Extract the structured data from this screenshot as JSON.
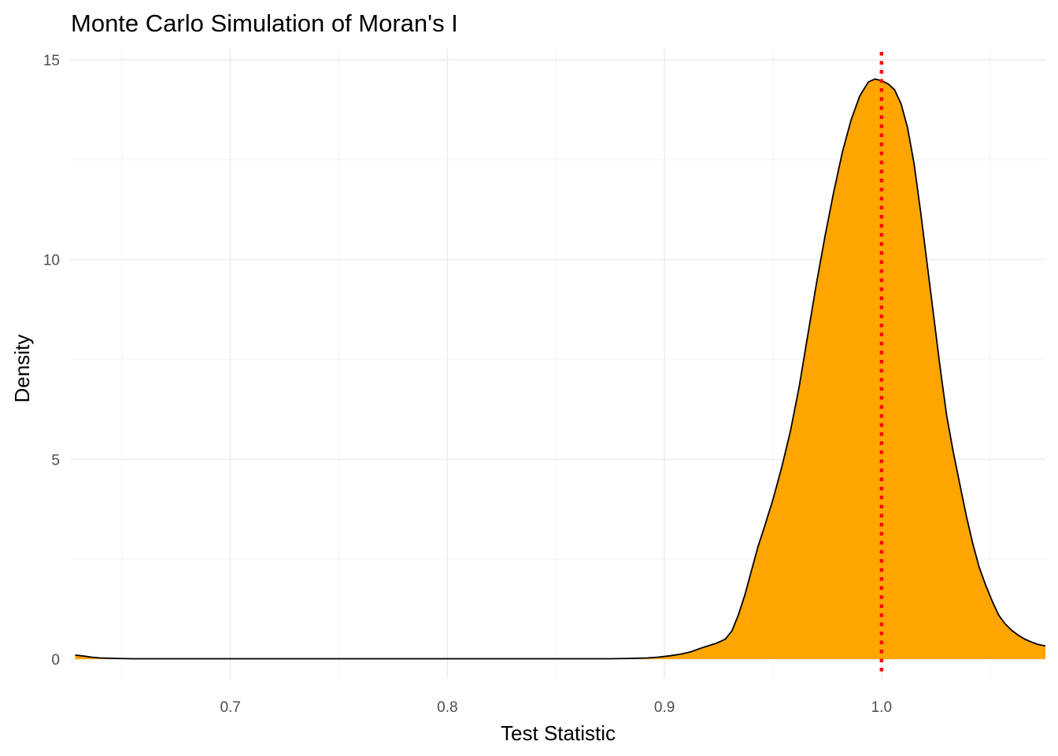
{
  "chart_data": {
    "type": "area",
    "title": "Monte Carlo Simulation of Moran's I",
    "xlabel": "Test Statistic",
    "ylabel": "Density",
    "xlim": [
      0.6265,
      1.0755
    ],
    "ylim": [
      0,
      15
    ],
    "x_ticks": [
      0.7,
      0.8,
      0.9,
      1.0
    ],
    "x_tick_labels": [
      "0.7",
      "0.8",
      "0.9",
      "1.0"
    ],
    "x_minor_ticks": [
      0.65,
      0.75,
      0.85,
      0.95,
      1.05
    ],
    "y_ticks": [
      0,
      5,
      10,
      15
    ],
    "y_tick_labels": [
      "0",
      "5",
      "10",
      "15"
    ],
    "y_minor_ticks": [
      2.5,
      7.5,
      12.5
    ],
    "grid": true,
    "legend": "none",
    "fill_color": "#FFA500",
    "line_color": "#000000",
    "reference_line": {
      "x": 1.0,
      "color": "#FF0000",
      "style": "dotted"
    },
    "series": [
      {
        "x": [
          0.6285,
          0.632,
          0.636,
          0.64,
          0.646,
          0.655,
          0.67,
          0.7,
          0.75,
          0.8,
          0.85,
          0.875,
          0.885,
          0.892,
          0.897,
          0.902,
          0.907,
          0.912,
          0.916,
          0.92,
          0.924,
          0.928,
          0.931,
          0.934,
          0.937,
          0.94,
          0.943,
          0.946,
          0.95,
          0.954,
          0.958,
          0.962,
          0.966,
          0.97,
          0.974,
          0.978,
          0.982,
          0.986,
          0.99,
          0.994,
          0.997,
          1.0,
          1.003,
          1.006,
          1.009,
          1.012,
          1.015,
          1.018,
          1.021,
          1.024,
          1.027,
          1.03,
          1.033,
          1.036,
          1.039,
          1.042,
          1.045,
          1.048,
          1.051,
          1.054,
          1.057,
          1.06,
          1.063,
          1.066,
          1.069,
          1.072,
          1.0755
        ],
        "y": [
          0.1,
          0.08,
          0.05,
          0.03,
          0.02,
          0.01,
          0.01,
          0.01,
          0.01,
          0.01,
          0.01,
          0.01,
          0.02,
          0.03,
          0.05,
          0.08,
          0.12,
          0.18,
          0.26,
          0.33,
          0.4,
          0.5,
          0.7,
          1.1,
          1.6,
          2.2,
          2.8,
          3.3,
          4.0,
          4.8,
          5.7,
          6.8,
          8.1,
          9.4,
          10.6,
          11.7,
          12.7,
          13.5,
          14.1,
          14.45,
          14.52,
          14.48,
          14.4,
          14.25,
          13.9,
          13.3,
          12.4,
          11.2,
          9.9,
          8.6,
          7.3,
          6.1,
          5.2,
          4.4,
          3.6,
          2.9,
          2.3,
          1.85,
          1.45,
          1.1,
          0.88,
          0.72,
          0.6,
          0.5,
          0.43,
          0.37,
          0.33
        ]
      }
    ]
  }
}
